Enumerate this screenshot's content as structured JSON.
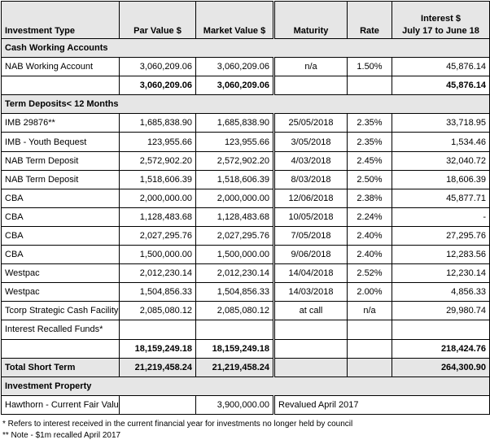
{
  "headers": {
    "type": "Investment Type",
    "par": "Par Value $",
    "market": "Market Value $",
    "maturity": "Maturity",
    "rate": "Rate",
    "interest_line1": "Interest $",
    "interest_line2": "July 17 to June 18"
  },
  "cash": {
    "section_label": "Cash Working Accounts",
    "rows": [
      {
        "type": "NAB Working Account",
        "par": "3,060,209.06",
        "market": "3,060,209.06",
        "maturity": "n/a",
        "rate": "1.50%",
        "interest": "45,876.14"
      }
    ],
    "subtotal": {
      "par": "3,060,209.06",
      "market": "3,060,209.06",
      "interest": "45,876.14"
    }
  },
  "term": {
    "section_label": "Term Deposits< 12 Months",
    "rows": [
      {
        "type": "IMB 29876**",
        "par": "1,685,838.90",
        "market": "1,685,838.90",
        "maturity": "25/05/2018",
        "rate": "2.35%",
        "interest": "33,718.95"
      },
      {
        "type": "IMB - Youth Bequest",
        "par": "123,955.66",
        "market": "123,955.66",
        "maturity": "3/05/2018",
        "rate": "2.35%",
        "interest": "1,534.46"
      },
      {
        "type": "NAB Term Deposit",
        "par": "2,572,902.20",
        "market": "2,572,902.20",
        "maturity": "4/03/2018",
        "rate": "2.45%",
        "interest": "32,040.72"
      },
      {
        "type": "NAB Term Deposit",
        "par": "1,518,606.39",
        "market": "1,518,606.39",
        "maturity": "8/03/2018",
        "rate": "2.50%",
        "interest": "18,606.39"
      },
      {
        "type": "CBA",
        "par": "2,000,000.00",
        "market": "2,000,000.00",
        "maturity": "12/06/2018",
        "rate": "2.38%",
        "interest": "45,877.71"
      },
      {
        "type": "CBA",
        "par": "1,128,483.68",
        "market": "1,128,483.68",
        "maturity": "10/05/2018",
        "rate": "2.24%",
        "interest": "-"
      },
      {
        "type": "CBA",
        "par": "2,027,295.76",
        "market": "2,027,295.76",
        "maturity": "7/05/2018",
        "rate": "2.40%",
        "interest": "27,295.76"
      },
      {
        "type": "CBA",
        "par": "1,500,000.00",
        "market": "1,500,000.00",
        "maturity": "9/06/2018",
        "rate": "2.40%",
        "interest": "12,283.56"
      },
      {
        "type": "Westpac",
        "par": "2,012,230.14",
        "market": "2,012,230.14",
        "maturity": "14/04/2018",
        "rate": "2.52%",
        "interest": "12,230.14"
      },
      {
        "type": "Westpac",
        "par": "1,504,856.33",
        "market": "1,504,856.33",
        "maturity": "14/03/2018",
        "rate": "2.00%",
        "interest": "4,856.33"
      },
      {
        "type": "Tcorp Strategic Cash Facility",
        "par": "2,085,080.12",
        "market": "2,085,080.12",
        "maturity": "at call",
        "rate": "n/a",
        "interest": "29,980.74"
      },
      {
        "type": "Interest Recalled Funds*",
        "par": "",
        "market": "",
        "maturity": "",
        "rate": "",
        "interest": ""
      }
    ],
    "subtotal": {
      "par": "18,159,249.18",
      "market": "18,159,249.18",
      "interest": "218,424.76"
    }
  },
  "total_short_term": {
    "label": "Total Short Term",
    "par": "21,219,458.24",
    "market": "21,219,458.24",
    "interest": "264,300.90"
  },
  "property": {
    "section_label": "Investment Property",
    "row": {
      "type": "Hawthorn - Current Fair Value",
      "market": "3,900,000.00",
      "note": "Revalued April 2017"
    }
  },
  "notes": [
    "* Refers to interest received in the current financial year for investments no longer held by council",
    "** Note - $1m recalled April 2017"
  ]
}
